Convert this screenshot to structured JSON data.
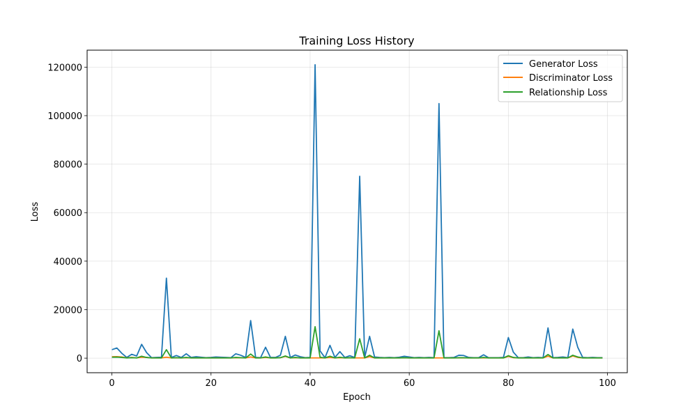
{
  "chart_data": {
    "type": "line",
    "title": "Training Loss History",
    "xlabel": "Epoch",
    "ylabel": "Loss",
    "xlim": [
      -5,
      104
    ],
    "ylim": [
      -6000,
      127000
    ],
    "xticks": [
      0,
      20,
      40,
      60,
      80,
      100
    ],
    "yticks": [
      0,
      20000,
      40000,
      60000,
      80000,
      100000,
      120000
    ],
    "grid": true,
    "legend_position": "top-right",
    "x": [
      0,
      1,
      2,
      3,
      4,
      5,
      6,
      7,
      8,
      9,
      10,
      11,
      12,
      13,
      14,
      15,
      16,
      17,
      18,
      19,
      20,
      21,
      22,
      23,
      24,
      25,
      26,
      27,
      28,
      29,
      30,
      31,
      32,
      33,
      34,
      35,
      36,
      37,
      38,
      39,
      40,
      41,
      42,
      43,
      44,
      45,
      46,
      47,
      48,
      49,
      50,
      51,
      52,
      53,
      54,
      55,
      56,
      57,
      58,
      59,
      60,
      61,
      62,
      63,
      64,
      65,
      66,
      67,
      68,
      69,
      70,
      71,
      72,
      73,
      74,
      75,
      76,
      77,
      78,
      79,
      80,
      81,
      82,
      83,
      84,
      85,
      86,
      87,
      88,
      89,
      90,
      91,
      92,
      93,
      94,
      95,
      96,
      97,
      98,
      99
    ],
    "series": [
      {
        "name": "Generator Loss",
        "color": "#1f77b4",
        "values": [
          3500,
          4200,
          2000,
          300,
          1600,
          900,
          5700,
          2300,
          200,
          300,
          400,
          33000,
          300,
          1100,
          300,
          1800,
          300,
          600,
          400,
          200,
          300,
          500,
          400,
          300,
          200,
          1800,
          1200,
          300,
          15500,
          300,
          200,
          4500,
          300,
          300,
          1200,
          9000,
          300,
          1300,
          600,
          200,
          300,
          121000,
          3000,
          200,
          5300,
          300,
          2700,
          300,
          1000,
          300,
          75000,
          200,
          9000,
          500,
          300,
          200,
          300,
          200,
          400,
          800,
          500,
          200,
          300,
          200,
          300,
          200,
          105000,
          200,
          200,
          300,
          1200,
          1100,
          300,
          200,
          200,
          1400,
          200,
          200,
          200,
          300,
          8500,
          2500,
          200,
          200,
          500,
          200,
          300,
          200,
          12500,
          200,
          300,
          500,
          200,
          12000,
          4500,
          300,
          200,
          300,
          200,
          200
        ]
      },
      {
        "name": "Discriminator Loss",
        "color": "#ff7f0e",
        "values": [
          600,
          650,
          500,
          100,
          300,
          100,
          400,
          300,
          100,
          100,
          100,
          400,
          100,
          100,
          100,
          200,
          100,
          100,
          100,
          100,
          100,
          100,
          100,
          100,
          100,
          200,
          150,
          100,
          500,
          100,
          100,
          300,
          100,
          100,
          200,
          700,
          100,
          200,
          100,
          100,
          100,
          100,
          100,
          100,
          300,
          100,
          200,
          100,
          100,
          100,
          100,
          100,
          600,
          100,
          100,
          100,
          100,
          100,
          100,
          100,
          100,
          100,
          100,
          100,
          100,
          100,
          100,
          100,
          100,
          100,
          100,
          100,
          100,
          100,
          100,
          150,
          100,
          100,
          100,
          100,
          700,
          200,
          100,
          100,
          100,
          100,
          100,
          100,
          800,
          100,
          100,
          100,
          100,
          900,
          300,
          100,
          100,
          100,
          100,
          100
        ]
      },
      {
        "name": "Relationship Loss",
        "color": "#2ca02c",
        "values": [
          400,
          450,
          300,
          100,
          200,
          100,
          800,
          300,
          100,
          100,
          100,
          3500,
          100,
          200,
          100,
          300,
          100,
          150,
          100,
          100,
          100,
          100,
          100,
          100,
          100,
          300,
          200,
          100,
          1700,
          100,
          100,
          500,
          100,
          100,
          200,
          900,
          100,
          300,
          100,
          100,
          100,
          13000,
          400,
          100,
          800,
          100,
          400,
          100,
          200,
          100,
          8000,
          100,
          1200,
          100,
          100,
          100,
          100,
          100,
          100,
          200,
          100,
          100,
          100,
          100,
          100,
          100,
          11300,
          100,
          100,
          100,
          200,
          200,
          100,
          100,
          100,
          300,
          100,
          100,
          100,
          100,
          1000,
          300,
          100,
          100,
          100,
          100,
          100,
          100,
          1500,
          100,
          100,
          100,
          100,
          1200,
          500,
          100,
          100,
          100,
          100,
          100
        ]
      }
    ]
  }
}
